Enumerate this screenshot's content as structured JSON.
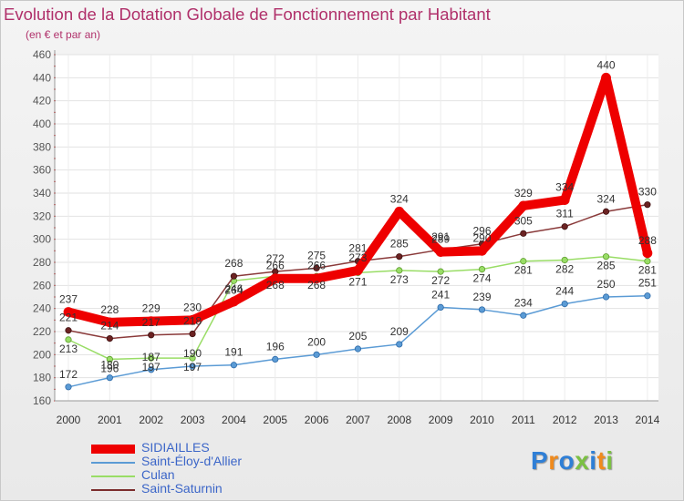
{
  "title": "Evolution de la Dotation Globale de Fonctionnement par Habitant",
  "subtitle": "(en € et par an)",
  "chart_data": {
    "type": "line",
    "title": "Evolution de la Dotation Globale de Fonctionnement par Habitant",
    "subtitle": "(en € et par an)",
    "xlabel": "",
    "ylabel": "",
    "ylim": [
      160,
      460
    ],
    "yticks": [
      160,
      180,
      200,
      220,
      240,
      260,
      280,
      300,
      320,
      340,
      360,
      380,
      400,
      420,
      440,
      460
    ],
    "categories": [
      "2000",
      "2001",
      "2002",
      "2003",
      "2004",
      "2005",
      "2006",
      "2007",
      "2008",
      "2009",
      "2010",
      "2011",
      "2012",
      "2013",
      "2014"
    ],
    "series": [
      {
        "name": "SIDIAILLES",
        "color": "#ee0000",
        "values": [
          237,
          228,
          229,
          230,
          246,
          266,
          266,
          273,
          324,
          289,
          290,
          329,
          334,
          440,
          288
        ]
      },
      {
        "name": "Saint-Éloy-d'Allier",
        "color": "#5b9bd5",
        "values": [
          172,
          180,
          187,
          190,
          191,
          196,
          200,
          205,
          209,
          241,
          239,
          234,
          244,
          250,
          251
        ]
      },
      {
        "name": "Culan",
        "color": "#99dd66",
        "values": [
          213,
          196,
          197,
          197,
          264,
          268,
          268,
          271,
          273,
          272,
          274,
          281,
          282,
          285,
          281
        ]
      },
      {
        "name": "Saint-Saturnin",
        "color": "#7b2c2c",
        "values": [
          221,
          214,
          217,
          218,
          268,
          272,
          275,
          281,
          285,
          291,
          296,
          305,
          311,
          324,
          330
        ]
      }
    ],
    "legend_position": "bottom-left",
    "grid": true
  },
  "legend": [
    {
      "label": "SIDIAILLES",
      "color": "#ee0000"
    },
    {
      "label": "Saint-Éloy-d'Allier",
      "color": "#5b9bd5"
    },
    {
      "label": "Culan",
      "color": "#99dd66"
    },
    {
      "label": "Saint-Saturnin",
      "color": "#7b2c2c"
    }
  ],
  "logo": {
    "text": "Proxiti"
  }
}
